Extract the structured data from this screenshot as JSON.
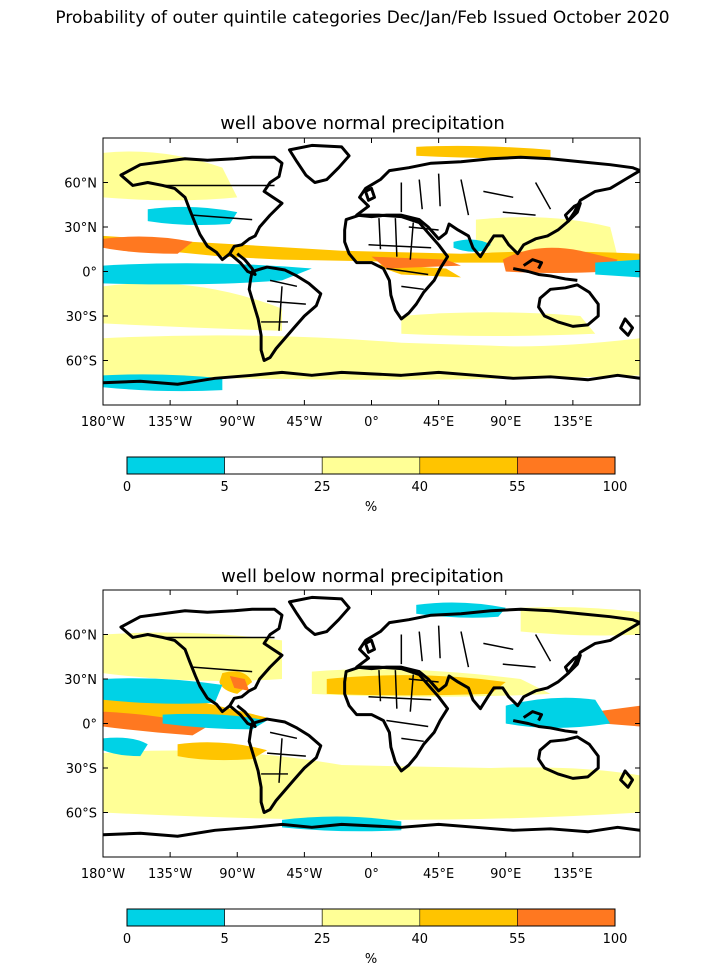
{
  "figure": {
    "title": "Probability of outer quintile categories Dec/Jan/Feb Issued October 2020"
  },
  "maps": [
    {
      "title": "well above normal precipitation",
      "lat_labels": [
        "60°N",
        "30°N",
        "0°",
        "30°S",
        "60°S"
      ],
      "lon_labels": [
        "180°W",
        "135°W",
        "90°W",
        "45°W",
        "0°",
        "45°E",
        "90°E",
        "135°E"
      ]
    },
    {
      "title": "well below normal precipitation",
      "lat_labels": [
        "60°N",
        "30°N",
        "0°",
        "30°S",
        "60°S"
      ],
      "lon_labels": [
        "180°W",
        "135°W",
        "90°W",
        "45°W",
        "0°",
        "45°E",
        "90°E",
        "135°E"
      ]
    }
  ],
  "colorbar": {
    "unit": "%",
    "ticks": [
      "0",
      "5",
      "25",
      "40",
      "55",
      "100"
    ],
    "bins": [
      {
        "range": [
          0,
          5
        ],
        "color": "#00d2e6"
      },
      {
        "range": [
          5,
          25
        ],
        "color": "#ffffff"
      },
      {
        "range": [
          25,
          40
        ],
        "color": "#ffff96"
      },
      {
        "range": [
          40,
          55
        ],
        "color": "#ffc400"
      },
      {
        "range": [
          55,
          100
        ],
        "color": "#ff7820"
      }
    ]
  }
}
